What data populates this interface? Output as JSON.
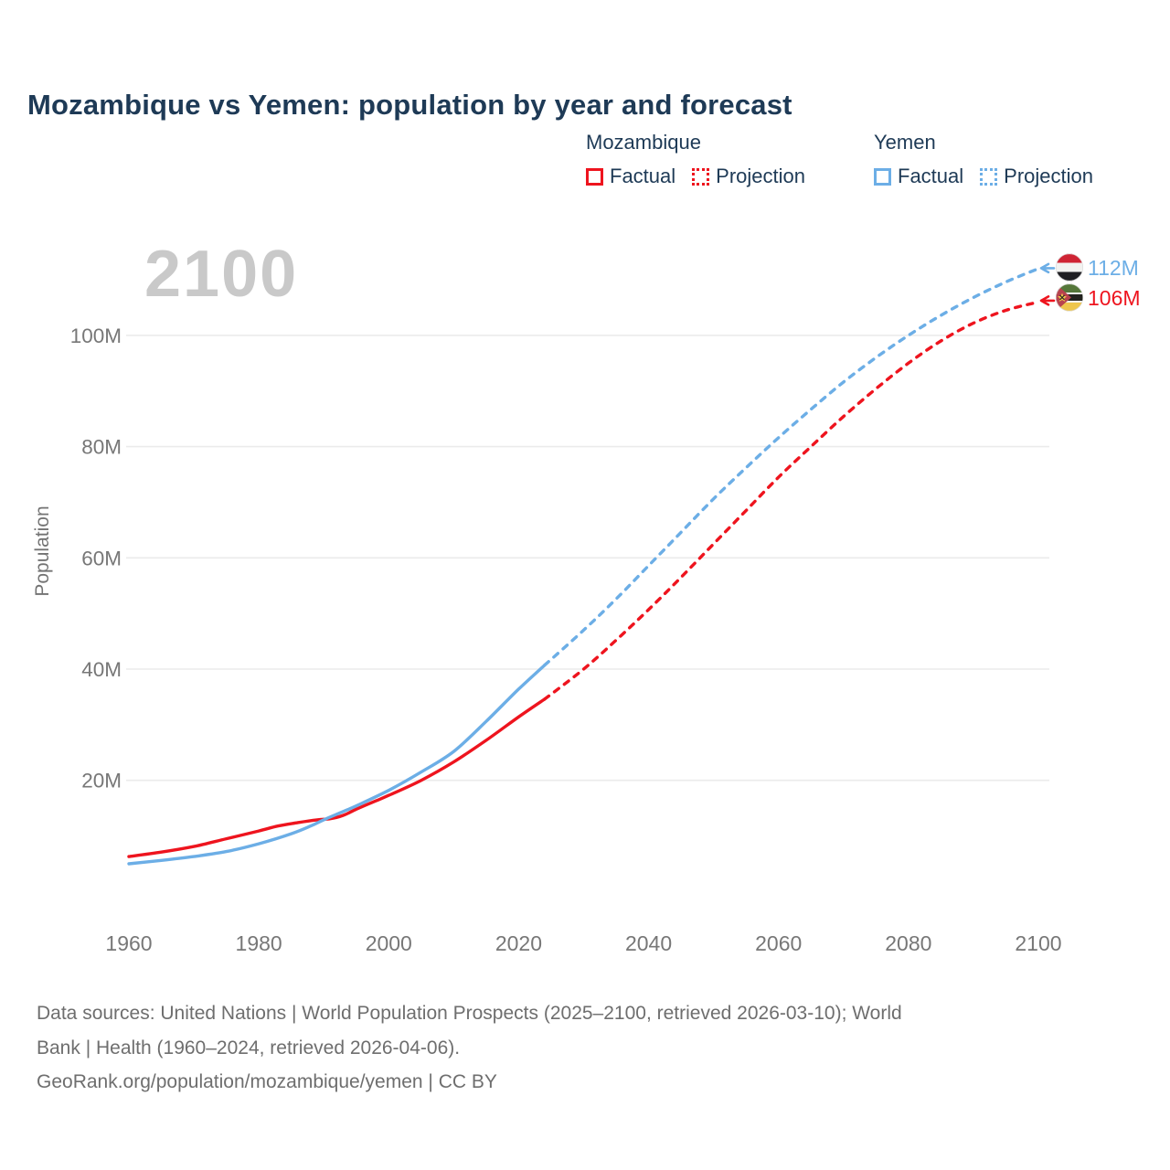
{
  "header": {
    "title": "Mozambique vs Yemen: population by year and forecast"
  },
  "legend": {
    "groups": [
      {
        "name": "Mozambique",
        "color": "#ee141e",
        "items": [
          {
            "label": "Factual",
            "style": "solid"
          },
          {
            "label": "Projection",
            "style": "dotted"
          }
        ]
      },
      {
        "name": "Yemen",
        "color": "#6caee6",
        "items": [
          {
            "label": "Factual",
            "style": "solid"
          },
          {
            "label": "Projection",
            "style": "dotted"
          }
        ]
      }
    ]
  },
  "chart": {
    "watermark": "2100",
    "y_axis_label": "Population"
  },
  "end_labels": {
    "yemen": {
      "text": "112M",
      "color": "#6caee6",
      "flag": "yemen-flag-icon"
    },
    "mozambique": {
      "text": "106M",
      "color": "#ee141e",
      "flag": "mozambique-flag-icon"
    }
  },
  "footer": {
    "lines": [
      "Data sources: United Nations | World Population Prospects (2025–2100, retrieved 2026-03-10); World",
      "Bank | Health (1960–2024, retrieved 2026-04-06).",
      "GeoRank.org/population/mozambique/yemen | CC BY"
    ]
  },
  "colors": {
    "mozambique_red": "#ee141e",
    "yemen_blue": "#6caee6",
    "title_navy": "#1e3a56",
    "axis_gray": "#777777",
    "gridline": "#ebebeb",
    "watermark_gray": "#c9c9c9",
    "footer_gray": "#6e6e6e"
  },
  "chart_data": {
    "type": "line",
    "title": "Mozambique vs Yemen: population by year and forecast",
    "xlabel": "",
    "ylabel": "Population",
    "unit": "millions",
    "grid": "horizontal-only",
    "legend_position": "top-right",
    "xlim": [
      1958,
      2114
    ],
    "ylim": [
      0,
      118
    ],
    "x_ticks": [
      {
        "value": 1960,
        "label": "1960"
      },
      {
        "value": 1980,
        "label": "1980"
      },
      {
        "value": 2000,
        "label": "2000"
      },
      {
        "value": 2020,
        "label": "2020"
      },
      {
        "value": 2040,
        "label": "2040"
      },
      {
        "value": 2060,
        "label": "2060"
      },
      {
        "value": 2080,
        "label": "2080"
      },
      {
        "value": 2100,
        "label": "2100"
      }
    ],
    "y_ticks": [
      {
        "value": 20,
        "label": "20M"
      },
      {
        "value": 40,
        "label": "40M"
      },
      {
        "value": 60,
        "label": "60M"
      },
      {
        "value": 80,
        "label": "80M"
      },
      {
        "value": 100,
        "label": "100M"
      }
    ],
    "series": [
      {
        "name": "Mozambique Factual",
        "country": "Mozambique",
        "kind": "factual",
        "color": "#ee141e",
        "style": "solid",
        "points": [
          [
            1960,
            6.3
          ],
          [
            1965,
            7.1
          ],
          [
            1970,
            8.1
          ],
          [
            1975,
            9.5
          ],
          [
            1980,
            10.9
          ],
          [
            1983,
            11.8
          ],
          [
            1986,
            12.4
          ],
          [
            1989,
            12.9
          ],
          [
            1991,
            13.1
          ],
          [
            1993,
            13.7
          ],
          [
            1995,
            14.8
          ],
          [
            1998,
            16.3
          ],
          [
            2000,
            17.3
          ],
          [
            2005,
            20.0
          ],
          [
            2010,
            23.3
          ],
          [
            2015,
            27.2
          ],
          [
            2020,
            31.4
          ],
          [
            2024,
            34.6
          ]
        ]
      },
      {
        "name": "Mozambique Projection",
        "country": "Mozambique",
        "kind": "projection",
        "color": "#ee141e",
        "style": "dashed",
        "arrow": true,
        "points": [
          [
            2024,
            34.6
          ],
          [
            2030,
            40.0
          ],
          [
            2035,
            45.2
          ],
          [
            2040,
            50.7
          ],
          [
            2045,
            56.5
          ],
          [
            2050,
            62.5
          ],
          [
            2055,
            68.5
          ],
          [
            2060,
            74.5
          ],
          [
            2065,
            80.0
          ],
          [
            2070,
            85.4
          ],
          [
            2075,
            90.4
          ],
          [
            2080,
            95.0
          ],
          [
            2085,
            99.0
          ],
          [
            2090,
            102.2
          ],
          [
            2095,
            104.5
          ],
          [
            2100,
            106.0
          ]
        ]
      },
      {
        "name": "Yemen Factual",
        "country": "Yemen",
        "kind": "factual",
        "color": "#6caee6",
        "style": "solid",
        "points": [
          [
            1960,
            5.0
          ],
          [
            1965,
            5.6
          ],
          [
            1970,
            6.3
          ],
          [
            1975,
            7.2
          ],
          [
            1980,
            8.6
          ],
          [
            1985,
            10.4
          ],
          [
            1988,
            11.8
          ],
          [
            1990,
            12.9
          ],
          [
            1993,
            14.4
          ],
          [
            1995,
            15.4
          ],
          [
            2000,
            18.2
          ],
          [
            2005,
            21.5
          ],
          [
            2010,
            25.2
          ],
          [
            2015,
            30.6
          ],
          [
            2020,
            36.4
          ],
          [
            2024,
            40.7
          ]
        ]
      },
      {
        "name": "Yemen Projection",
        "country": "Yemen",
        "kind": "projection",
        "color": "#6caee6",
        "style": "dashed",
        "arrow": true,
        "points": [
          [
            2024,
            40.7
          ],
          [
            2030,
            47.0
          ],
          [
            2035,
            52.6
          ],
          [
            2040,
            58.6
          ],
          [
            2045,
            64.6
          ],
          [
            2050,
            70.6
          ],
          [
            2055,
            76.2
          ],
          [
            2060,
            81.6
          ],
          [
            2065,
            86.7
          ],
          [
            2070,
            91.6
          ],
          [
            2075,
            96.0
          ],
          [
            2080,
            100.0
          ],
          [
            2085,
            103.6
          ],
          [
            2090,
            106.8
          ],
          [
            2095,
            109.6
          ],
          [
            2100,
            112.0
          ]
        ]
      }
    ],
    "end_values": {
      "Yemen": 112,
      "Mozambique": 106
    }
  }
}
